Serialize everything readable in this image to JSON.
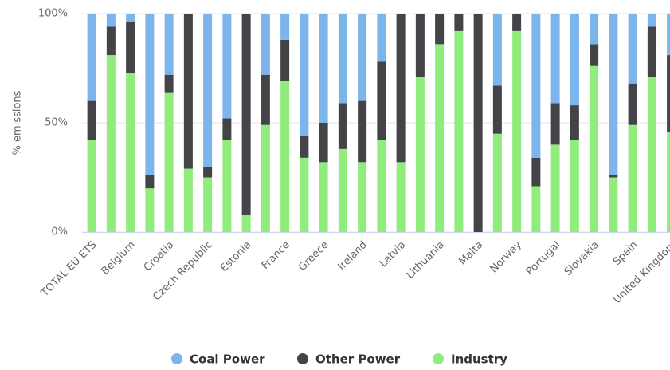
{
  "chart_data": {
    "type": "stacked_bar",
    "y_label": "% emissions",
    "categories": [
      "TOTAL EU ETS",
      null,
      "Belgium",
      null,
      "Croatia",
      null,
      "Czech Republic",
      null,
      "Estonia",
      null,
      "France",
      null,
      "Greece",
      null,
      "Ireland",
      null,
      "Latvia",
      null,
      "Lithuania",
      null,
      "Malta",
      null,
      "Norway",
      null,
      "Portugal",
      null,
      "Slovakia",
      null,
      "Spain",
      null,
      "United Kingdom"
    ],
    "series": [
      {
        "name": "Coal Power",
        "color": "#7cb5ec",
        "values": [
          40,
          6,
          4,
          74,
          28,
          0,
          70,
          48,
          0,
          28,
          12,
          56,
          50,
          41,
          40,
          22,
          0,
          0,
          0,
          0,
          0,
          33,
          0,
          66,
          41,
          42,
          14,
          74,
          32,
          6,
          19
        ]
      },
      {
        "name": "Other Power",
        "color": "#434348",
        "values": [
          18,
          13,
          23,
          6,
          8,
          71,
          5,
          10,
          92,
          23,
          19,
          10,
          18,
          21,
          28,
          36,
          68,
          29,
          14,
          8,
          100,
          22,
          8,
          13,
          19,
          16,
          10,
          1,
          19,
          23,
          35
        ]
      },
      {
        "name": "Industry",
        "color": "#90ed7d",
        "values": [
          42,
          81,
          73,
          20,
          64,
          29,
          25,
          42,
          8,
          49,
          69,
          34,
          32,
          38,
          32,
          42,
          32,
          71,
          86,
          92,
          0,
          45,
          92,
          21,
          40,
          42,
          76,
          25,
          49,
          71,
          46
        ]
      }
    ],
    "ylim": [
      0,
      100
    ],
    "yticks": [
      {
        "value": 0,
        "label": "0%"
      },
      {
        "value": 50,
        "label": "50%"
      },
      {
        "value": 100,
        "label": "100%"
      }
    ],
    "grid": true,
    "legend": "bottom"
  }
}
